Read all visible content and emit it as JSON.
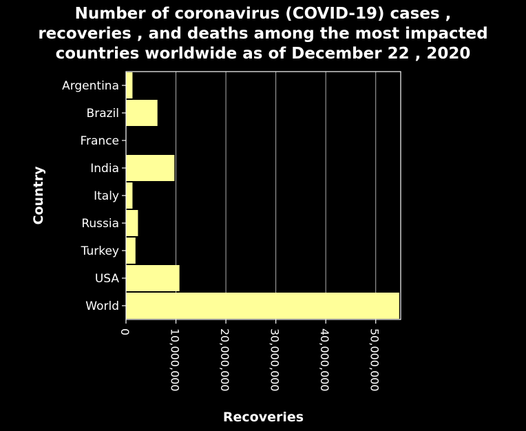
{
  "chart_data": {
    "type": "bar",
    "orientation": "horizontal",
    "title_lines": [
      "Number of coronavirus (COVID-19) cases ,",
      "recoveries , and deaths among the most impacted",
      "countries worldwide as of December 22 , 2020"
    ],
    "xlabel": "Recoveries",
    "ylabel": "Country",
    "categories": [
      "Argentina",
      "Brazil",
      "France",
      "India",
      "Italy",
      "Russia",
      "Turkey",
      "USA",
      "World"
    ],
    "values": [
      1300000,
      6300000,
      0,
      9700000,
      1300000,
      2400000,
      1900000,
      10700000,
      54700000
    ],
    "xlim": [
      0,
      55000000
    ],
    "xticks": [
      0,
      10000000,
      20000000,
      30000000,
      40000000,
      50000000
    ],
    "xtick_labels": [
      "0",
      "10,000,000",
      "20,000,000",
      "30,000,000",
      "40,000,000",
      "50,000,000"
    ],
    "grid": true,
    "bar_color": "#ffff99",
    "background_color": "#000000",
    "text_color": "#ffffff",
    "grid_color": "#b0b0b0"
  }
}
